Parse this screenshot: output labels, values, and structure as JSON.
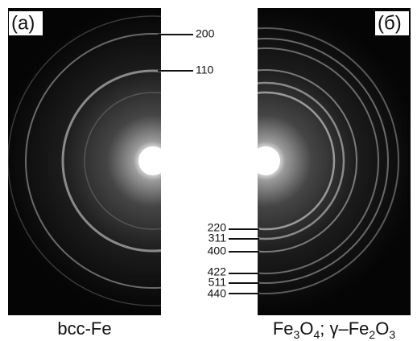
{
  "panels": [
    {
      "tag": "(a)",
      "caption": [
        "bcc-Fe"
      ],
      "reflections": [
        "200",
        "110"
      ]
    },
    {
      "tag": "(б)",
      "caption": [
        "Fe",
        "3",
        "O",
        "4",
        "; γ–Fe",
        "2",
        "O",
        "3"
      ],
      "reflections": [
        "220",
        "311",
        "400",
        "422",
        "511",
        "440"
      ]
    }
  ]
}
